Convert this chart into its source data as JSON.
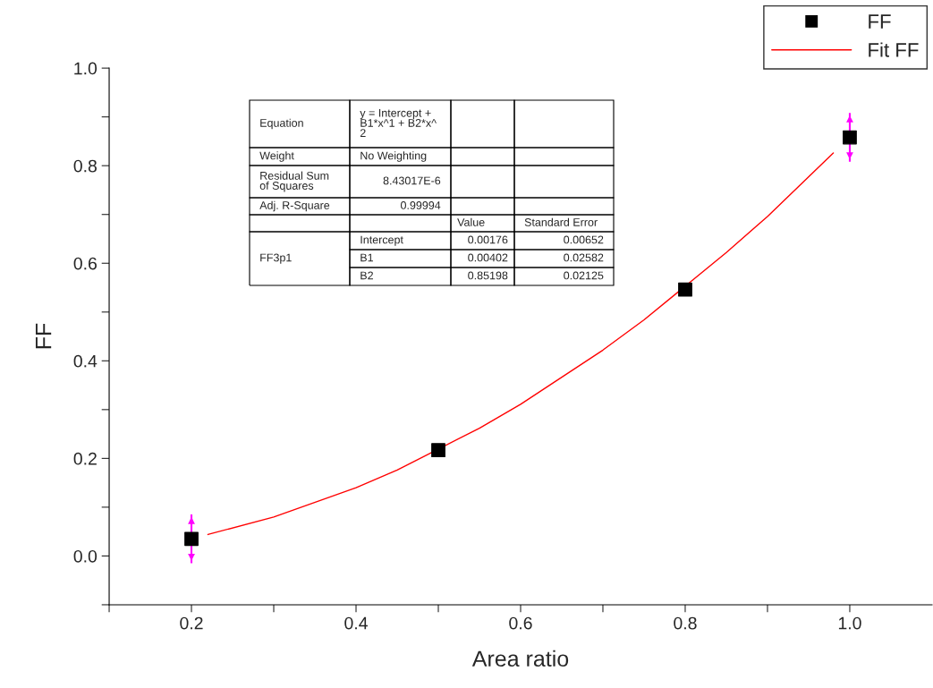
{
  "chart_data": {
    "type": "scatter",
    "xlabel": "Area ratio",
    "ylabel": "FF",
    "xlim": [
      0.1,
      1.1
    ],
    "ylim": [
      -0.1,
      1.0
    ],
    "xticks": [
      {
        "value": 0.1,
        "label": null
      },
      0.2,
      {
        "value": 0.3,
        "label": null
      },
      0.4,
      {
        "value": 0.5,
        "label": null
      },
      0.6,
      {
        "value": 0.7,
        "label": null
      },
      0.8,
      {
        "value": 0.9,
        "label": null
      },
      {
        "value": 1.0,
        "label": "1.0"
      }
    ],
    "yticks": [
      {
        "value": -0.1,
        "label": null
      },
      {
        "value": 0.0,
        "label": "0.0"
      },
      {
        "value": 0.1,
        "label": null
      },
      0.2,
      {
        "value": 0.3,
        "label": null
      },
      0.4,
      {
        "value": 0.5,
        "label": null
      },
      0.6,
      {
        "value": 0.7,
        "label": null
      },
      0.8,
      {
        "value": 0.9,
        "label": null
      },
      {
        "value": 1.0,
        "label": "1.0"
      }
    ],
    "grid": false,
    "legend": "top right",
    "series": [
      {
        "name": "FF",
        "marker": "square",
        "color": "#000000",
        "x": [
          0.2,
          0.5,
          0.8,
          1.0
        ],
        "values": [
          0.035,
          0.217,
          0.546,
          0.858
        ],
        "errors": [
          0.05,
          null,
          null,
          0.05
        ]
      },
      {
        "name": "Fit FF",
        "type": "line",
        "marker": "none",
        "line_style": "solid",
        "color": "#ff0000",
        "x": [
          0.22,
          0.3,
          0.4,
          0.45,
          0.55,
          0.6,
          0.7,
          0.75,
          0.85,
          0.9,
          0.98
        ],
        "values": [
          0.044,
          0.08,
          0.14,
          0.176,
          0.262,
          0.311,
          0.422,
          0.484,
          0.622,
          0.696,
          0.826
        ]
      }
    ],
    "annotations": [
      "Equation",
      "y = Intercept +\nB1*x^1 + B2*x^\n2",
      "Weight",
      "No Weighting",
      "Residual Sum\nof Squares",
      "8.43017E-6",
      "Adj. R-Square",
      "0.99994",
      "Value",
      "Standard Error",
      "FF3p1",
      "Intercept",
      "0.00176",
      "0.00652",
      "B1",
      "0.00402",
      "0.02582",
      "B2",
      "0.85198",
      "0.02125"
    ]
  }
}
